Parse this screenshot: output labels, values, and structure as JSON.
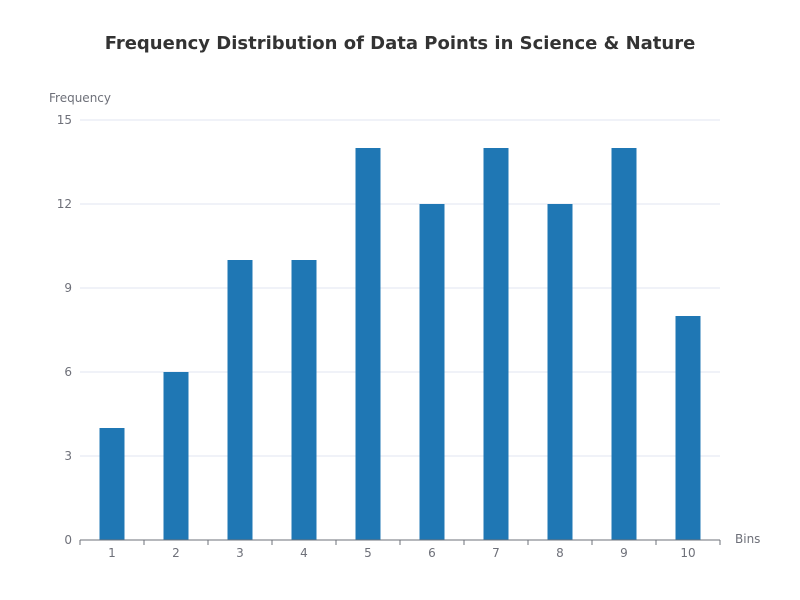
{
  "chart_data": {
    "type": "bar",
    "title": "Frequency Distribution of Data Points in Science & Nature",
    "xlabel": "Bins",
    "ylabel": "Frequency",
    "categories": [
      "1",
      "2",
      "3",
      "4",
      "5",
      "6",
      "7",
      "8",
      "9",
      "10"
    ],
    "values": [
      4,
      6,
      10,
      10,
      14,
      12,
      14,
      12,
      14,
      8
    ],
    "ylim": [
      0,
      15
    ],
    "yticks": [
      0,
      3,
      6,
      9,
      12,
      15
    ],
    "grid": true,
    "legend": "none",
    "bar_color": "#1f77b4"
  }
}
